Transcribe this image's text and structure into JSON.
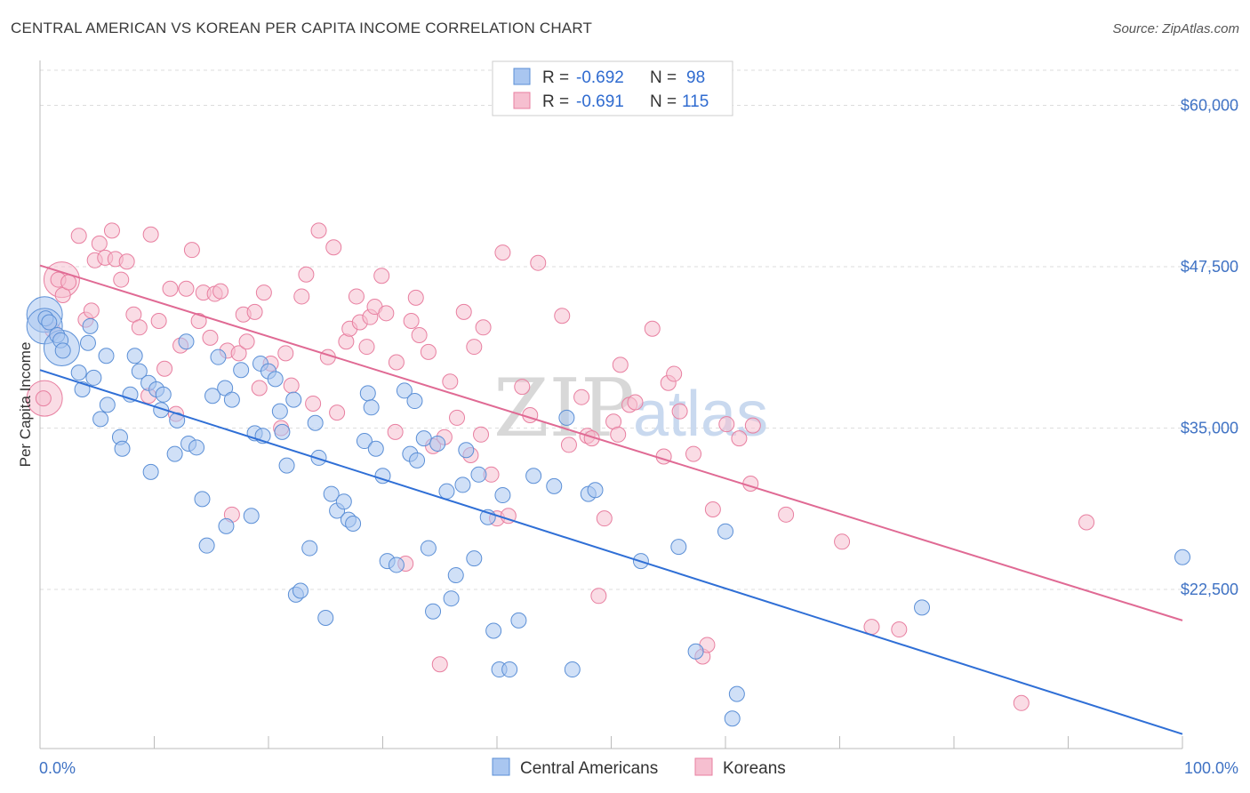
{
  "title": "CENTRAL AMERICAN VS KOREAN PER CAPITA INCOME CORRELATION CHART",
  "source": "Source: ZipAtlas.com",
  "watermark": {
    "zip": "ZIP",
    "atlas": "atlas"
  },
  "legend": {
    "rows": [
      {
        "r_label": "R =",
        "r_value": "-0.692",
        "n_label": "N =",
        "n_value": "98"
      },
      {
        "r_label": "R =",
        "r_value": "-0.691",
        "n_label": "N =",
        "n_value": "115"
      }
    ]
  },
  "colors": {
    "blue_fill": "#a9c6f0",
    "blue_stroke": "#5b8fd6",
    "blue_line": "#2f6fd6",
    "pink_fill": "#f6bfd0",
    "pink_stroke": "#e87fa0",
    "pink_line": "#e06a94",
    "axis_text": "#3f72c4",
    "grid": "#dddddd"
  },
  "chart_data": {
    "type": "scatter",
    "title": "CENTRAL AMERICAN VS KOREAN PER CAPITA INCOME CORRELATION CHART",
    "xlabel": "",
    "ylabel": "Per Capita Income",
    "xlim": [
      0,
      100
    ],
    "ylim": [
      11000,
      63000
    ],
    "x_tick_labels": [
      "0.0%",
      "100.0%"
    ],
    "y_ticks": [
      22500,
      35000,
      47500,
      60000
    ],
    "y_tick_labels": [
      "$22,500",
      "$35,000",
      "$47,500",
      "$60,000"
    ],
    "grid": true,
    "series": [
      {
        "name": "Central Americans",
        "color": "#a9c6f0",
        "trend": {
          "x": [
            0,
            100
          ],
          "y": [
            39500,
            11300
          ]
        },
        "points": [
          [
            0.5,
            43500
          ],
          [
            0.8,
            43200
          ],
          [
            1.5,
            42200
          ],
          [
            1.8,
            41800
          ],
          [
            2.0,
            41000
          ],
          [
            4.2,
            41600
          ],
          [
            4.4,
            42900
          ],
          [
            3.4,
            39300
          ],
          [
            3.7,
            38000
          ],
          [
            4.7,
            38900
          ],
          [
            5.3,
            35700
          ],
          [
            5.9,
            36800
          ],
          [
            5.8,
            40600
          ],
          [
            7.0,
            34300
          ],
          [
            7.2,
            33400
          ],
          [
            7.9,
            37600
          ],
          [
            8.3,
            40600
          ],
          [
            8.7,
            39400
          ],
          [
            9.5,
            38500
          ],
          [
            9.7,
            31600
          ],
          [
            10.2,
            38000
          ],
          [
            10.8,
            37600
          ],
          [
            10.6,
            36400
          ],
          [
            12.0,
            35600
          ],
          [
            11.8,
            33000
          ],
          [
            13.0,
            33800
          ],
          [
            13.7,
            33500
          ],
          [
            12.8,
            41700
          ],
          [
            14.2,
            29500
          ],
          [
            14.6,
            25900
          ],
          [
            15.1,
            37500
          ],
          [
            15.6,
            40500
          ],
          [
            16.2,
            38100
          ],
          [
            16.8,
            37200
          ],
          [
            16.3,
            27400
          ],
          [
            17.6,
            39500
          ],
          [
            18.5,
            28200
          ],
          [
            18.8,
            34600
          ],
          [
            19.3,
            40000
          ],
          [
            19.5,
            34400
          ],
          [
            20.0,
            39400
          ],
          [
            20.6,
            38800
          ],
          [
            21.0,
            36300
          ],
          [
            21.2,
            34700
          ],
          [
            21.6,
            32100
          ],
          [
            22.2,
            37200
          ],
          [
            22.4,
            22100
          ],
          [
            22.8,
            22400
          ],
          [
            23.6,
            25700
          ],
          [
            24.1,
            35400
          ],
          [
            24.4,
            32700
          ],
          [
            25.0,
            20300
          ],
          [
            25.5,
            29900
          ],
          [
            26.0,
            28600
          ],
          [
            26.6,
            29300
          ],
          [
            27.0,
            27900
          ],
          [
            27.4,
            27600
          ],
          [
            28.4,
            34000
          ],
          [
            28.7,
            37700
          ],
          [
            29.0,
            36600
          ],
          [
            29.4,
            33400
          ],
          [
            30.0,
            31300
          ],
          [
            30.4,
            24700
          ],
          [
            31.2,
            24400
          ],
          [
            31.9,
            37900
          ],
          [
            32.4,
            33000
          ],
          [
            32.8,
            37100
          ],
          [
            33.0,
            32500
          ],
          [
            33.6,
            34200
          ],
          [
            34.0,
            25700
          ],
          [
            34.4,
            20800
          ],
          [
            34.8,
            33800
          ],
          [
            35.6,
            30100
          ],
          [
            36.0,
            21800
          ],
          [
            36.4,
            23600
          ],
          [
            37.0,
            30600
          ],
          [
            37.3,
            33300
          ],
          [
            38.0,
            24900
          ],
          [
            38.4,
            31400
          ],
          [
            39.2,
            28100
          ],
          [
            39.7,
            19300
          ],
          [
            40.5,
            29800
          ],
          [
            40.2,
            16300
          ],
          [
            41.1,
            16300
          ],
          [
            41.9,
            20100
          ],
          [
            43.2,
            31300
          ],
          [
            45.0,
            30500
          ],
          [
            46.1,
            35800
          ],
          [
            46.6,
            16300
          ],
          [
            48.0,
            29900
          ],
          [
            48.6,
            30200
          ],
          [
            52.6,
            24700
          ],
          [
            55.9,
            25800
          ],
          [
            57.4,
            17700
          ],
          [
            60.0,
            27000
          ],
          [
            60.6,
            12500
          ],
          [
            61.0,
            14400
          ],
          [
            77.2,
            21100
          ],
          [
            100.0,
            25000
          ]
        ],
        "large_points": [
          [
            0.4,
            43800
          ],
          [
            0.4,
            42900
          ],
          [
            1.9,
            41200
          ]
        ]
      },
      {
        "name": "Koreans",
        "color": "#f6bfd0",
        "trend": {
          "x": [
            0,
            100
          ],
          "y": [
            47600,
            20100
          ]
        },
        "points": [
          [
            0.3,
            37300
          ],
          [
            1.1,
            42600
          ],
          [
            1.6,
            46500
          ],
          [
            2.0,
            45300
          ],
          [
            2.5,
            46300
          ],
          [
            3.4,
            49900
          ],
          [
            4.0,
            43400
          ],
          [
            4.5,
            44100
          ],
          [
            4.8,
            48000
          ],
          [
            5.2,
            49300
          ],
          [
            5.7,
            48200
          ],
          [
            6.3,
            50300
          ],
          [
            6.6,
            48100
          ],
          [
            7.1,
            46500
          ],
          [
            7.6,
            47900
          ],
          [
            8.2,
            43800
          ],
          [
            8.7,
            42800
          ],
          [
            9.5,
            37500
          ],
          [
            9.7,
            50000
          ],
          [
            10.4,
            43300
          ],
          [
            10.9,
            39600
          ],
          [
            11.4,
            45800
          ],
          [
            11.9,
            36100
          ],
          [
            12.3,
            41400
          ],
          [
            12.8,
            45800
          ],
          [
            13.3,
            48800
          ],
          [
            13.9,
            43300
          ],
          [
            14.3,
            45500
          ],
          [
            14.9,
            42000
          ],
          [
            15.3,
            45400
          ],
          [
            15.8,
            45600
          ],
          [
            16.4,
            41000
          ],
          [
            16.8,
            28300
          ],
          [
            17.4,
            40800
          ],
          [
            17.8,
            43800
          ],
          [
            18.1,
            41700
          ],
          [
            18.8,
            44000
          ],
          [
            19.2,
            38100
          ],
          [
            19.6,
            45500
          ],
          [
            20.2,
            40000
          ],
          [
            21.1,
            35000
          ],
          [
            21.5,
            40800
          ],
          [
            22.0,
            38300
          ],
          [
            22.9,
            45200
          ],
          [
            23.3,
            46900
          ],
          [
            23.9,
            36900
          ],
          [
            24.4,
            50300
          ],
          [
            25.2,
            40500
          ],
          [
            25.7,
            49000
          ],
          [
            26.0,
            36200
          ],
          [
            26.8,
            41700
          ],
          [
            27.1,
            42700
          ],
          [
            27.7,
            45200
          ],
          [
            28.0,
            43200
          ],
          [
            28.6,
            41300
          ],
          [
            28.9,
            43600
          ],
          [
            29.3,
            44400
          ],
          [
            29.9,
            46800
          ],
          [
            30.3,
            43900
          ],
          [
            31.1,
            34700
          ],
          [
            31.2,
            40100
          ],
          [
            32.0,
            24500
          ],
          [
            32.5,
            43300
          ],
          [
            32.9,
            45100
          ],
          [
            33.2,
            42200
          ],
          [
            34.0,
            40900
          ],
          [
            34.4,
            33600
          ],
          [
            35.0,
            16700
          ],
          [
            35.4,
            34300
          ],
          [
            35.9,
            38600
          ],
          [
            36.5,
            35800
          ],
          [
            37.1,
            44000
          ],
          [
            37.7,
            32900
          ],
          [
            38.0,
            41300
          ],
          [
            38.6,
            34500
          ],
          [
            38.8,
            42800
          ],
          [
            39.5,
            31400
          ],
          [
            40.0,
            28000
          ],
          [
            40.5,
            48600
          ],
          [
            41.0,
            28200
          ],
          [
            42.2,
            38200
          ],
          [
            42.9,
            36000
          ],
          [
            43.6,
            47800
          ],
          [
            45.7,
            43700
          ],
          [
            46.3,
            33700
          ],
          [
            47.4,
            37400
          ],
          [
            47.9,
            34400
          ],
          [
            48.3,
            34200
          ],
          [
            48.9,
            22000
          ],
          [
            49.4,
            28000
          ],
          [
            50.2,
            35500
          ],
          [
            50.6,
            34500
          ],
          [
            50.8,
            39900
          ],
          [
            51.6,
            36800
          ],
          [
            52.1,
            37000
          ],
          [
            53.6,
            42700
          ],
          [
            54.6,
            32800
          ],
          [
            55.0,
            38500
          ],
          [
            55.5,
            39200
          ],
          [
            56.0,
            36300
          ],
          [
            57.2,
            33000
          ],
          [
            58.0,
            17300
          ],
          [
            58.4,
            18200
          ],
          [
            58.9,
            28700
          ],
          [
            60.1,
            35300
          ],
          [
            61.2,
            34200
          ],
          [
            62.2,
            30700
          ],
          [
            62.4,
            35200
          ],
          [
            65.3,
            28300
          ],
          [
            70.2,
            26200
          ],
          [
            72.8,
            19600
          ],
          [
            75.2,
            19400
          ],
          [
            85.9,
            13700
          ],
          [
            91.6,
            27700
          ]
        ],
        "large_points": [
          [
            0.4,
            37300
          ],
          [
            1.9,
            46500
          ]
        ]
      }
    ]
  },
  "bottom_legend": [
    {
      "label": "Central Americans"
    },
    {
      "label": "Koreans"
    }
  ]
}
